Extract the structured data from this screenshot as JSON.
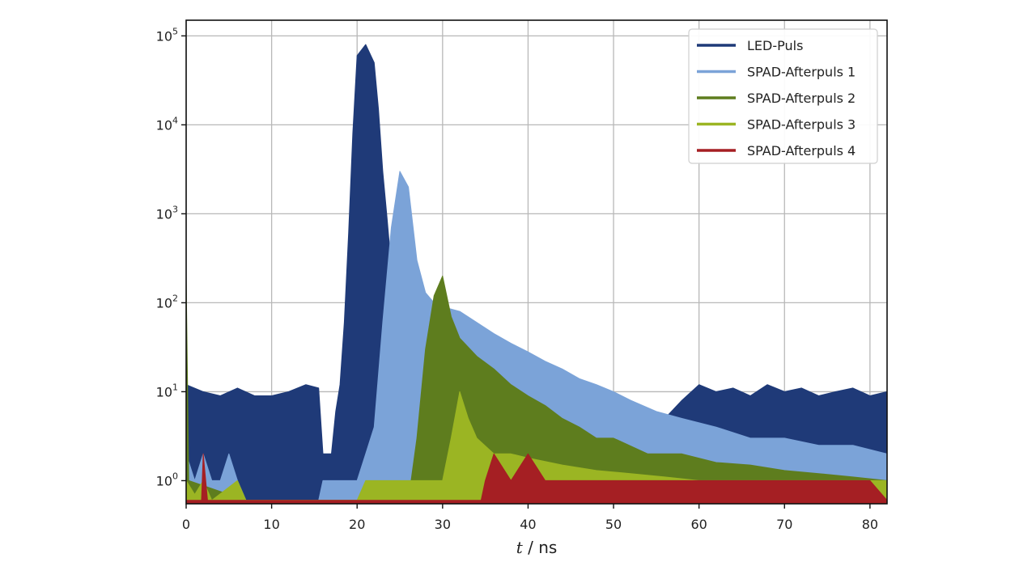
{
  "chart_data": {
    "type": "area",
    "title": "",
    "xlabel_italic": "t",
    "xlabel_rest": " / ns",
    "ylabel": "",
    "xlim": [
      0,
      82
    ],
    "ylim": [
      0.55,
      150000
    ],
    "yscale": "log",
    "grid": true,
    "legend_position": "top-right",
    "x_ticks": [
      0,
      10,
      20,
      30,
      40,
      50,
      60,
      70,
      80
    ],
    "x_tick_labels": [
      "0",
      "10",
      "20",
      "30",
      "40",
      "50",
      "60",
      "70",
      "80"
    ],
    "y_ticks": [
      1,
      10,
      100,
      1000,
      10000,
      100000
    ],
    "y_tick_labels": [
      {
        "base": "10",
        "exp": "0"
      },
      {
        "base": "10",
        "exp": "1"
      },
      {
        "base": "10",
        "exp": "2"
      },
      {
        "base": "10",
        "exp": "3"
      },
      {
        "base": "10",
        "exp": "4"
      },
      {
        "base": "10",
        "exp": "5"
      }
    ],
    "series": [
      {
        "name": "LED-Puls",
        "color": "#1f3a78",
        "points": [
          [
            0,
            12
          ],
          [
            2,
            10
          ],
          [
            4,
            9
          ],
          [
            6,
            11
          ],
          [
            8,
            9
          ],
          [
            10,
            9
          ],
          [
            12,
            10
          ],
          [
            14,
            12
          ],
          [
            15.5,
            11
          ],
          [
            16,
            2
          ],
          [
            17,
            2
          ],
          [
            17.5,
            6
          ],
          [
            18,
            12
          ],
          [
            18.5,
            60
          ],
          [
            19,
            600
          ],
          [
            19.5,
            8000
          ],
          [
            20,
            60000
          ],
          [
            21,
            80000
          ],
          [
            22,
            50000
          ],
          [
            22.5,
            15000
          ],
          [
            23,
            3000
          ],
          [
            23.5,
            900
          ],
          [
            24,
            250
          ],
          [
            24.5,
            40
          ],
          [
            25,
            5
          ],
          [
            25.5,
            1
          ],
          [
            26,
            0.6
          ],
          [
            53,
            0.6
          ],
          [
            54,
            3
          ],
          [
            56,
            5
          ],
          [
            58,
            8
          ],
          [
            60,
            12
          ],
          [
            62,
            10
          ],
          [
            64,
            11
          ],
          [
            66,
            9
          ],
          [
            68,
            12
          ],
          [
            70,
            10
          ],
          [
            72,
            11
          ],
          [
            74,
            9
          ],
          [
            76,
            10
          ],
          [
            78,
            11
          ],
          [
            80,
            9
          ],
          [
            82,
            10
          ]
        ]
      },
      {
        "name": "SPAD-Afterpuls 1",
        "color": "#7ba3d8",
        "points": [
          [
            0,
            2
          ],
          [
            1,
            1
          ],
          [
            2,
            2
          ],
          [
            3,
            1
          ],
          [
            4,
            1
          ],
          [
            5,
            2
          ],
          [
            6,
            1
          ],
          [
            7,
            0.6
          ],
          [
            15.5,
            0.6
          ],
          [
            16,
            1
          ],
          [
            18,
            1
          ],
          [
            20,
            1
          ],
          [
            21,
            2
          ],
          [
            22,
            4
          ],
          [
            23,
            60
          ],
          [
            24,
            700
          ],
          [
            25,
            3000
          ],
          [
            26,
            2000
          ],
          [
            27,
            300
          ],
          [
            28,
            130
          ],
          [
            29,
            100
          ],
          [
            30,
            90
          ],
          [
            32,
            80
          ],
          [
            34,
            60
          ],
          [
            36,
            45
          ],
          [
            38,
            35
          ],
          [
            40,
            28
          ],
          [
            42,
            22
          ],
          [
            44,
            18
          ],
          [
            46,
            14
          ],
          [
            48,
            12
          ],
          [
            50,
            10
          ],
          [
            52,
            8
          ],
          [
            55,
            6
          ],
          [
            58,
            5
          ],
          [
            62,
            4
          ],
          [
            66,
            3
          ],
          [
            70,
            3
          ],
          [
            74,
            2.5
          ],
          [
            78,
            2.5
          ],
          [
            82,
            2
          ]
        ]
      },
      {
        "name": "SPAD-Afterpuls 2",
        "color": "#5e7d1e",
        "points": [
          [
            0,
            200
          ],
          [
            0.3,
            1
          ],
          [
            7,
            0.6
          ],
          [
            26,
            0.6
          ],
          [
            27,
            3
          ],
          [
            28,
            30
          ],
          [
            29,
            120
          ],
          [
            30,
            200
          ],
          [
            31,
            70
          ],
          [
            32,
            40
          ],
          [
            34,
            25
          ],
          [
            36,
            18
          ],
          [
            38,
            12
          ],
          [
            40,
            9
          ],
          [
            42,
            7
          ],
          [
            44,
            5
          ],
          [
            46,
            4
          ],
          [
            48,
            3
          ],
          [
            50,
            3
          ],
          [
            54,
            2
          ],
          [
            58,
            2
          ],
          [
            62,
            1.6
          ],
          [
            66,
            1.5
          ],
          [
            70,
            1.3
          ],
          [
            74,
            1.2
          ],
          [
            78,
            1.1
          ],
          [
            82,
            1
          ]
        ]
      },
      {
        "name": "SPAD-Afterpuls 3",
        "color": "#9bb523",
        "points": [
          [
            0,
            1
          ],
          [
            1,
            0.7
          ],
          [
            2,
            1
          ],
          [
            3,
            0.6
          ],
          [
            6,
            1
          ],
          [
            7,
            0.6
          ],
          [
            20,
            0.6
          ],
          [
            21,
            1
          ],
          [
            23,
            1
          ],
          [
            25,
            1
          ],
          [
            27,
            1
          ],
          [
            29,
            1
          ],
          [
            30,
            1
          ],
          [
            31,
            3
          ],
          [
            32,
            10
          ],
          [
            33,
            5
          ],
          [
            34,
            3
          ],
          [
            36,
            2
          ],
          [
            38,
            2
          ],
          [
            40,
            1.8
          ],
          [
            44,
            1.5
          ],
          [
            48,
            1.3
          ],
          [
            52,
            1.2
          ],
          [
            56,
            1.1
          ],
          [
            60,
            1
          ],
          [
            66,
            1
          ],
          [
            72,
            1
          ],
          [
            78,
            1
          ],
          [
            82,
            1
          ]
        ]
      },
      {
        "name": "SPAD-Afterpuls 4",
        "color": "#a51f23",
        "points": [
          [
            0,
            0.6
          ],
          [
            1.8,
            0.6
          ],
          [
            2,
            2
          ],
          [
            2.5,
            0.6
          ],
          [
            34.5,
            0.6
          ],
          [
            35,
            1
          ],
          [
            36,
            2
          ],
          [
            38,
            1
          ],
          [
            40,
            2
          ],
          [
            42,
            1
          ],
          [
            44,
            1
          ],
          [
            46,
            1
          ],
          [
            50,
            1
          ],
          [
            56,
            1
          ],
          [
            60,
            1
          ],
          [
            64,
            1
          ],
          [
            68,
            1
          ],
          [
            72,
            1
          ],
          [
            76,
            1
          ],
          [
            80,
            1
          ],
          [
            82,
            0.6
          ]
        ]
      }
    ]
  }
}
